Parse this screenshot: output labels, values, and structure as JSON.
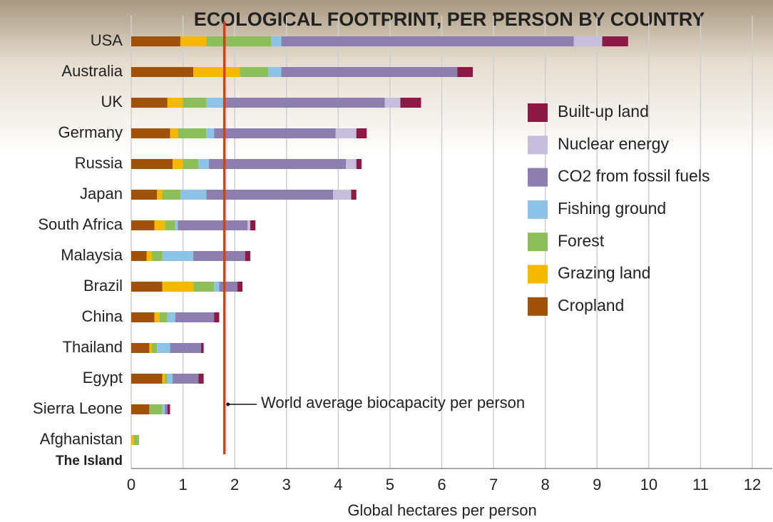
{
  "chart_data": {
    "type": "stacked-barh",
    "title": "ECOLOGICAL FOOTPRINT, PER PERSON BY COUNTRY",
    "x_label": "Global hectares per person",
    "source": "The Island",
    "categories": [
      "USA",
      "Australia",
      "UK",
      "Germany",
      "Russia",
      "Japan",
      "South Africa",
      "Malaysia",
      "Brazil",
      "China",
      "Thailand",
      "Egypt",
      "Sierra Leone",
      "Afghanistan"
    ],
    "series": [
      {
        "name": "Cropland",
        "color": "#a0520a",
        "values": [
          0.95,
          1.2,
          0.7,
          0.75,
          0.8,
          0.5,
          0.45,
          0.3,
          0.6,
          0.45,
          0.35,
          0.6,
          0.35,
          0
        ]
      },
      {
        "name": "Grazing land",
        "color": "#f5b800",
        "values": [
          0.5,
          0.9,
          0.3,
          0.15,
          0.2,
          0.1,
          0.2,
          0.1,
          0.6,
          0.1,
          0.05,
          0.05,
          0,
          0.05
        ]
      },
      {
        "name": "Forest",
        "color": "#8cbf5a",
        "values": [
          1.25,
          0.55,
          0.45,
          0.55,
          0.3,
          0.35,
          0.2,
          0.2,
          0.4,
          0.15,
          0.1,
          0.05,
          0.25,
          0.1
        ]
      },
      {
        "name": "Fishing ground",
        "color": "#8cc3e6",
        "values": [
          0.2,
          0.25,
          0.35,
          0.15,
          0.2,
          0.5,
          0.05,
          0.6,
          0.1,
          0.15,
          0.25,
          0.1,
          0.05,
          0
        ]
      },
      {
        "name": "CO2 from fossil fuels",
        "color": "#8c7fb0",
        "values": [
          5.65,
          3.4,
          3.1,
          2.35,
          2.65,
          2.45,
          1.35,
          1.0,
          0.35,
          0.75,
          0.6,
          0.5,
          0.05,
          0
        ]
      },
      {
        "name": "Nuclear energy",
        "color": "#c6bedc",
        "values": [
          0.55,
          0,
          0.3,
          0.4,
          0.2,
          0.35,
          0.05,
          0,
          0,
          0,
          0,
          0,
          0,
          0
        ]
      },
      {
        "name": "Built-up land",
        "color": "#8c1a44",
        "values": [
          0.5,
          0.3,
          0.4,
          0.2,
          0.1,
          0.1,
          0.1,
          0.1,
          0.1,
          0.1,
          0.05,
          0.1,
          0.05,
          0
        ]
      }
    ],
    "reference_line": {
      "value": 1.8,
      "label": "World average biocapacity per person",
      "color": "#d0401a"
    },
    "xlim": [
      0,
      12
    ],
    "xticks": [
      0,
      1,
      2,
      3,
      4,
      5,
      6,
      7,
      8,
      9,
      10,
      11,
      12
    ],
    "grid": true,
    "legend": "right"
  }
}
